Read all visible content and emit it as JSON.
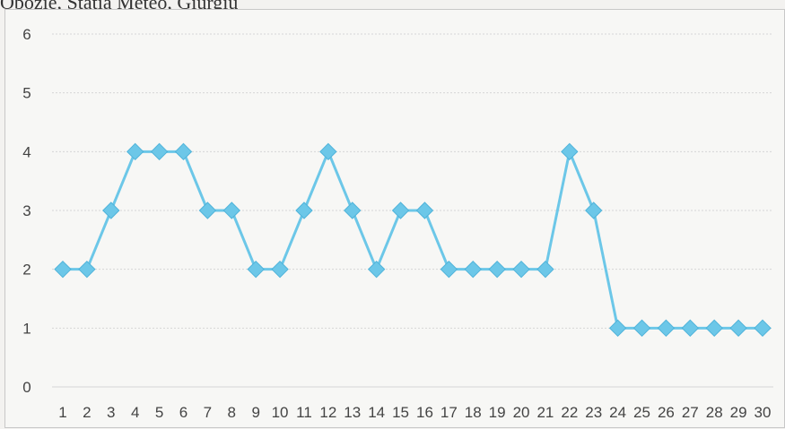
{
  "header": {
    "caption": "Obozie, Stația Meteo, Giurgiu"
  },
  "chart_data": {
    "type": "line",
    "title": "",
    "xlabel": "",
    "ylabel": "",
    "x": [
      1,
      2,
      3,
      4,
      5,
      6,
      7,
      8,
      9,
      10,
      11,
      12,
      13,
      14,
      15,
      16,
      17,
      18,
      19,
      20,
      21,
      22,
      23,
      24,
      25,
      26,
      27,
      28,
      29,
      30
    ],
    "series": [
      {
        "values": [
          2,
          2,
          3,
          4,
          4,
          4,
          3,
          3,
          2,
          2,
          3,
          4,
          3,
          2,
          3,
          3,
          2,
          2,
          2,
          2,
          2,
          4,
          3,
          1,
          1,
          1,
          1,
          1,
          1,
          1
        ],
        "color": "#6cc7e8",
        "marker": "diamond"
      }
    ],
    "ylim": [
      0,
      6
    ],
    "yticks": [
      0,
      1,
      2,
      3,
      4,
      5,
      6
    ],
    "grid": "horizontal",
    "legend": "none"
  }
}
